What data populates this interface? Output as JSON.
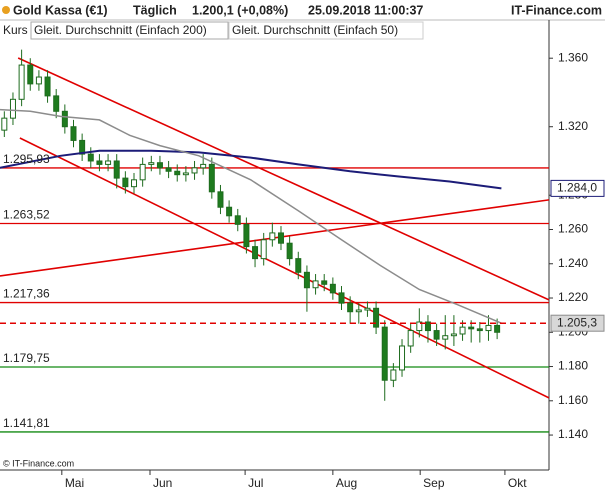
{
  "chart_data": {
    "type": "candlestick",
    "title": "Gold Kassa (€1)",
    "interval": "Täglich",
    "last": "1.200,1 (+0,08%)",
    "timestamp": "25.09.2018 11:00:37",
    "source": "IT-Finance.com",
    "copyright": "© IT-Finance.com",
    "xlim": [
      0,
      127
    ],
    "ylim": [
      1.1196,
      1.3823
    ],
    "yticks": [
      {
        "value": 1.36,
        "label": "1.360"
      },
      {
        "value": 1.32,
        "label": "1.320"
      },
      {
        "value": 1.28,
        "label": "1.280"
      },
      {
        "value": 1.26,
        "label": "1.260"
      },
      {
        "value": 1.24,
        "label": "1.240"
      },
      {
        "value": 1.22,
        "label": "1.220"
      },
      {
        "value": 1.2,
        "label": "1.200"
      },
      {
        "value": 1.18,
        "label": "1.180"
      },
      {
        "value": 1.16,
        "label": "1.160"
      },
      {
        "value": 1.14,
        "label": "1.140"
      }
    ],
    "xticks": [
      {
        "value": 14.3,
        "label": "Mai"
      },
      {
        "value": 34.7,
        "label": "Jun"
      },
      {
        "value": 56.7,
        "label": "Jul"
      },
      {
        "value": 77,
        "label": "Aug"
      },
      {
        "value": 97.2,
        "label": "Sep"
      },
      {
        "value": 116.8,
        "label": "Okt"
      }
    ],
    "series": [
      {
        "name": "Kurs",
        "up_color": "#ffffff",
        "down_color": "#1e7b1e",
        "outline": "#1e6b1e",
        "x": [
          1,
          3,
          5,
          7,
          9,
          11,
          13,
          15,
          17,
          19,
          21,
          23,
          25,
          27,
          29,
          31,
          33,
          35,
          37,
          39,
          41,
          43,
          45,
          47,
          49,
          51,
          53,
          55,
          57,
          59,
          61,
          63,
          65,
          67,
          69,
          71,
          73,
          75,
          77,
          79,
          81,
          83,
          85,
          87,
          89,
          91,
          93,
          95,
          97,
          99,
          101,
          103,
          105,
          107,
          109,
          111,
          113,
          115
        ],
        "open": [
          1.318,
          1.325,
          1.336,
          1.356,
          1.345,
          1.349,
          1.338,
          1.329,
          1.32,
          1.312,
          1.304,
          1.3,
          1.298,
          1.3,
          1.29,
          1.285,
          1.289,
          1.298,
          1.299,
          1.296,
          1.294,
          1.292,
          1.293,
          1.296,
          1.298,
          1.282,
          1.273,
          1.268,
          1.263,
          1.25,
          1.243,
          1.254,
          1.258,
          1.252,
          1.243,
          1.235,
          1.226,
          1.23,
          1.228,
          1.223,
          1.217,
          1.212,
          1.213,
          1.214,
          1.203,
          1.172,
          1.178,
          1.192,
          1.201,
          1.206,
          1.201,
          1.196,
          1.198,
          1.199,
          1.203,
          1.202,
          1.201,
          1.204
        ],
        "high": [
          1.329,
          1.34,
          1.365,
          1.36,
          1.353,
          1.353,
          1.342,
          1.333,
          1.324,
          1.316,
          1.308,
          1.304,
          1.304,
          1.304,
          1.294,
          1.293,
          1.302,
          1.303,
          1.303,
          1.3,
          1.298,
          1.297,
          1.3,
          1.304,
          1.302,
          1.286,
          1.277,
          1.272,
          1.267,
          1.254,
          1.258,
          1.264,
          1.262,
          1.256,
          1.247,
          1.239,
          1.234,
          1.234,
          1.232,
          1.227,
          1.221,
          1.217,
          1.218,
          1.218,
          1.207,
          1.182,
          1.196,
          1.205,
          1.214,
          1.21,
          1.205,
          1.21,
          1.21,
          1.207,
          1.207,
          1.206,
          1.21,
          1.208
        ],
        "low": [
          1.314,
          1.321,
          1.332,
          1.341,
          1.341,
          1.334,
          1.325,
          1.316,
          1.308,
          1.3,
          1.296,
          1.294,
          1.294,
          1.284,
          1.281,
          1.281,
          1.285,
          1.294,
          1.292,
          1.29,
          1.288,
          1.288,
          1.289,
          1.292,
          1.278,
          1.269,
          1.264,
          1.259,
          1.246,
          1.238,
          1.239,
          1.25,
          1.248,
          1.239,
          1.231,
          1.212,
          1.222,
          1.224,
          1.219,
          1.213,
          1.205,
          1.205,
          1.209,
          1.199,
          1.16,
          1.168,
          1.174,
          1.188,
          1.197,
          1.194,
          1.192,
          1.19,
          1.192,
          1.195,
          1.194,
          1.194,
          1.195,
          1.196
        ],
        "close": [
          1.325,
          1.336,
          1.356,
          1.345,
          1.349,
          1.338,
          1.329,
          1.32,
          1.312,
          1.304,
          1.3,
          1.298,
          1.3,
          1.29,
          1.285,
          1.289,
          1.298,
          1.299,
          1.296,
          1.294,
          1.292,
          1.293,
          1.296,
          1.298,
          1.282,
          1.273,
          1.268,
          1.263,
          1.25,
          1.243,
          1.254,
          1.258,
          1.252,
          1.243,
          1.235,
          1.226,
          1.23,
          1.228,
          1.223,
          1.217,
          1.212,
          1.213,
          1.214,
          1.203,
          1.172,
          1.178,
          1.192,
          1.201,
          1.206,
          1.201,
          1.196,
          1.198,
          1.199,
          1.203,
          1.202,
          1.201,
          1.204,
          1.2
        ]
      },
      {
        "name": "Gleit. Durchschnitt (Einfach 200)",
        "color": "#1c1c78",
        "x": [
          0,
          14,
          23,
          35,
          46,
          58,
          69,
          81,
          92,
          104,
          116
        ],
        "values": [
          1.296,
          1.303,
          1.306,
          1.306,
          1.305,
          1.302,
          1.298,
          1.294,
          1.291,
          1.288,
          1.284
        ],
        "end_label": "1.284,0"
      },
      {
        "name": "Gleit. Durchschnitt (Einfach 50)",
        "color": "#8c8c8c",
        "x": [
          0,
          7,
          14,
          23,
          30,
          37,
          46,
          58,
          69,
          79,
          88,
          97,
          106,
          116
        ],
        "values": [
          1.33,
          1.329,
          1.326,
          1.324,
          1.315,
          1.309,
          1.303,
          1.289,
          1.271,
          1.254,
          1.239,
          1.225,
          1.216,
          1.2053
        ],
        "end_label": "1.205,3",
        "dashed_level_color": "#e00000"
      }
    ],
    "levels": [
      {
        "value": 1.29593,
        "label": "1.295,93",
        "color": "#e00000"
      },
      {
        "value": 1.26352,
        "label": "1.263,52",
        "color": "#e00000"
      },
      {
        "value": 1.21736,
        "label": "1.217,36",
        "color": "#e00000"
      },
      {
        "value": 1.17975,
        "label": "1.179,75",
        "color": "#138a13"
      },
      {
        "value": 1.14181,
        "label": "1.141,81",
        "color": "#138a13"
      }
    ],
    "trendlines": [
      {
        "x": [
          4.2,
          127
        ],
        "y": [
          1.3601,
          1.2189
        ],
        "color": "#e00000"
      },
      {
        "x": [
          4.6,
          127
        ],
        "y": [
          1.3134,
          1.1617
        ],
        "color": "#e00000"
      },
      {
        "x": [
          0,
          127
        ],
        "y": [
          1.2329,
          1.2773
        ],
        "color": "#e00000"
      }
    ]
  }
}
